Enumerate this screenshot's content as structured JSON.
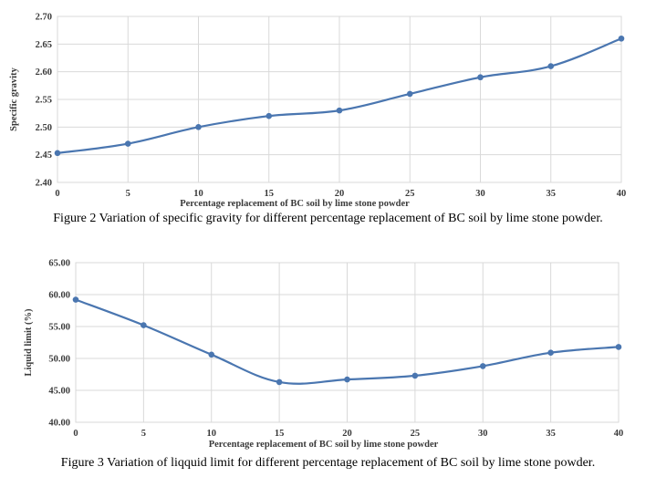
{
  "chart_data": [
    {
      "type": "line",
      "title": "",
      "xlabel": "Percentage replacement  of BC soil by lime stone powder",
      "ylabel": "Specific gravity",
      "x": [
        0,
        5,
        10,
        15,
        20,
        25,
        30,
        35,
        40
      ],
      "y_ticks": [
        "2.40",
        "2.45",
        "2.50",
        "2.55",
        "2.60",
        "2.65",
        "2.70"
      ],
      "ylim": [
        2.4,
        2.7
      ],
      "series": [
        {
          "values": [
            2.453,
            2.47,
            2.5,
            2.52,
            2.53,
            2.56,
            2.59,
            2.61,
            2.66
          ]
        }
      ],
      "grid": true,
      "line_color": "#4a76b0",
      "caption": "Figure 2 Variation of specific gravity for different percentage replacement of BC soil by lime stone powder."
    },
    {
      "type": "line",
      "title": "",
      "xlabel": "Percentage replacement  of BC soil by lime stone powder",
      "ylabel": "Liquid limit (%)",
      "x": [
        0,
        5,
        10,
        15,
        20,
        25,
        30,
        35,
        40
      ],
      "y_ticks": [
        "40.00",
        "45.00",
        "50.00",
        "55.00",
        "60.00",
        "65.00"
      ],
      "ylim": [
        40,
        65
      ],
      "series": [
        {
          "values": [
            59.2,
            55.2,
            50.6,
            46.3,
            46.7,
            47.3,
            48.8,
            50.9,
            51.8
          ]
        }
      ],
      "grid": true,
      "line_color": "#4a76b0",
      "caption": "Figure 3 Variation of liqquid limit for different percentage replacement of BC soil by lime stone powder."
    }
  ]
}
